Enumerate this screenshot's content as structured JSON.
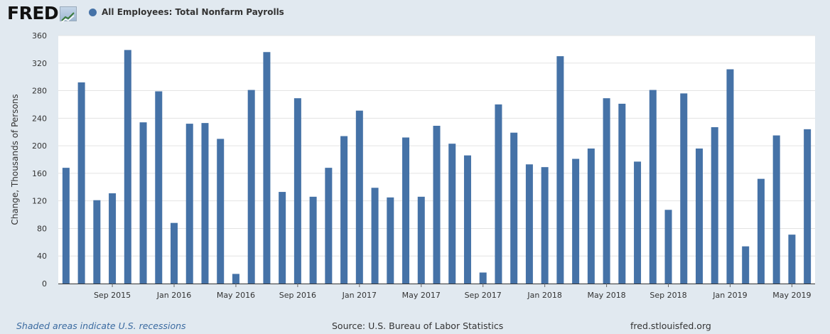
{
  "header": {
    "logo_text": "FRED",
    "logo_graph_icon": "chart-line-icon",
    "series_title": "All Employees: Total Nonfarm Payrolls",
    "series_color": "#4572a7"
  },
  "footer": {
    "recession_note": "Shaded areas indicate U.S. recessions",
    "source": "Source: U.S. Bureau of Labor Statistics",
    "site": "fred.stlouisfed.org"
  },
  "chart_data": {
    "type": "bar",
    "title": "All Employees: Total Nonfarm Payrolls",
    "xlabel": "",
    "ylabel": "Change, Thousands of Persons",
    "ylim": [
      0,
      360
    ],
    "yticks": [
      0,
      40,
      80,
      120,
      160,
      200,
      240,
      280,
      320,
      360
    ],
    "grid": true,
    "color": "#4572a7",
    "categories": [
      "Jun 2015",
      "Jul 2015",
      "Aug 2015",
      "Sep 2015",
      "Oct 2015",
      "Nov 2015",
      "Dec 2015",
      "Jan 2016",
      "Feb 2016",
      "Mar 2016",
      "Apr 2016",
      "May 2016",
      "Jun 2016",
      "Jul 2016",
      "Aug 2016",
      "Sep 2016",
      "Oct 2016",
      "Nov 2016",
      "Dec 2016",
      "Jan 2017",
      "Feb 2017",
      "Mar 2017",
      "Apr 2017",
      "May 2017",
      "Jun 2017",
      "Jul 2017",
      "Aug 2017",
      "Sep 2017",
      "Oct 2017",
      "Nov 2017",
      "Dec 2017",
      "Jan 2018",
      "Feb 2018",
      "Mar 2018",
      "Apr 2018",
      "May 2018",
      "Jun 2018",
      "Jul 2018",
      "Aug 2018",
      "Sep 2018",
      "Oct 2018",
      "Nov 2018",
      "Dec 2018",
      "Jan 2019",
      "Feb 2019",
      "Mar 2019",
      "Apr 2019",
      "May 2019",
      "Jun 2019"
    ],
    "values": [
      168,
      292,
      121,
      131,
      339,
      234,
      279,
      88,
      232,
      233,
      210,
      14,
      281,
      336,
      133,
      269,
      126,
      168,
      214,
      251,
      139,
      125,
      212,
      126,
      229,
      203,
      186,
      16,
      260,
      219,
      173,
      169,
      330,
      181,
      196,
      269,
      261,
      177,
      281,
      107,
      276,
      196,
      227,
      311,
      54,
      152,
      215,
      71,
      224
    ],
    "xtick_labels": [
      {
        "index": 3,
        "label": "Sep 2015"
      },
      {
        "index": 7,
        "label": "Jan 2016"
      },
      {
        "index": 11,
        "label": "May 2016"
      },
      {
        "index": 15,
        "label": "Sep 2016"
      },
      {
        "index": 19,
        "label": "Jan 2017"
      },
      {
        "index": 23,
        "label": "May 2017"
      },
      {
        "index": 27,
        "label": "Sep 2017"
      },
      {
        "index": 31,
        "label": "Jan 2018"
      },
      {
        "index": 35,
        "label": "May 2018"
      },
      {
        "index": 39,
        "label": "Sep 2018"
      },
      {
        "index": 43,
        "label": "Jan 2019"
      },
      {
        "index": 47,
        "label": "May 2019"
      }
    ]
  }
}
